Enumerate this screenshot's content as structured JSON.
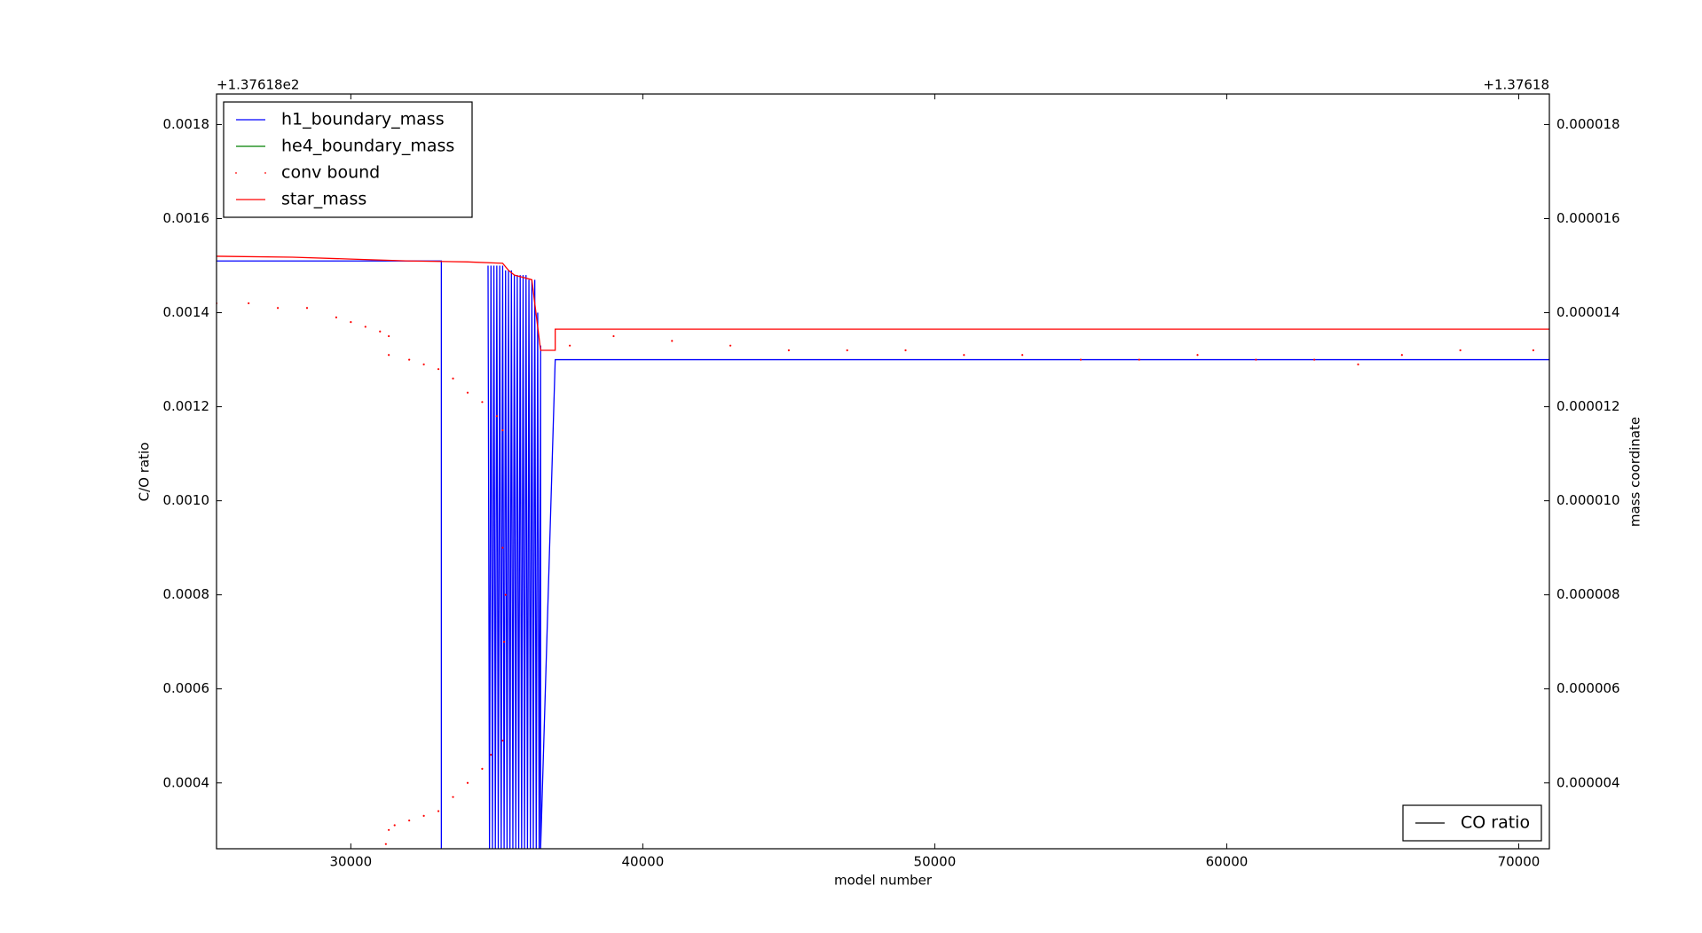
{
  "chart_data": {
    "type": "line",
    "xlabel": "model number",
    "ylabel": "C/O ratio",
    "y2label": "mass coordinate",
    "y_offset_text": "+1.37618e2",
    "y2_offset_text": "+1.37618",
    "xlim": [
      25400,
      71050
    ],
    "xticks": [
      30000,
      40000,
      50000,
      60000,
      70000
    ],
    "ylim": [
      0.00026,
      0.001865
    ],
    "yticks": [
      0.0004,
      0.0006,
      0.0008,
      {
        "value": 0.001,
        "label": "0.0010"
      },
      0.0012,
      0.0014,
      0.0016,
      0.0018
    ],
    "y2lim": [
      2.6e-06,
      1.865e-05
    ],
    "y2ticks": [
      4e-06,
      6e-06,
      8e-06,
      {
        "value": 1e-05,
        "label": "0.000010"
      },
      1.2e-05,
      1.4e-05,
      1.6e-05,
      1.8e-05
    ],
    "grid": false,
    "legend": "upper left",
    "legend2": "lower right",
    "series": [
      {
        "name": "h1_boundary_mass",
        "color": "#0000ff",
        "axis": "y2",
        "style": "line",
        "x": [
          25400,
          33100,
          33100,
          34700,
          34700,
          34750,
          34800,
          34850,
          34900,
          34950,
          35000,
          35050,
          35100,
          35150,
          35200,
          35250,
          35300,
          35350,
          35400,
          35450,
          35500,
          35550,
          35600,
          35650,
          35700,
          35750,
          35800,
          35850,
          35900,
          35950,
          36000,
          36050,
          36100,
          36150,
          36200,
          36250,
          36300,
          36350,
          36400,
          36450,
          36500,
          36500,
          37000,
          71050
        ],
        "values": [
          1.51e-05,
          1.51e-05,
          2.6e-06,
          null,
          1.5e-05,
          2.6e-06,
          1.5e-05,
          2.6e-06,
          1.5e-05,
          2.6e-06,
          1.5e-05,
          2.6e-06,
          1.5e-05,
          2.6e-06,
          1.5e-05,
          2.6e-06,
          1.49e-05,
          2.6e-06,
          1.49e-05,
          2.6e-06,
          1.49e-05,
          2.6e-06,
          1.48e-05,
          2.6e-06,
          1.48e-05,
          2.6e-06,
          1.48e-05,
          2.6e-06,
          1.48e-05,
          2.6e-06,
          1.48e-05,
          2.6e-06,
          1.47e-05,
          2.6e-06,
          1.47e-05,
          2.6e-06,
          1.47e-05,
          2.6e-06,
          1.4e-05,
          2.6e-06,
          1.33e-05,
          2.6e-06,
          1.3e-05,
          1.3e-05
        ]
      },
      {
        "name": "he4_boundary_mass",
        "color": "#008000",
        "axis": "y2",
        "style": "line",
        "x": [],
        "values": []
      },
      {
        "name": "conv bound",
        "color": "#ff0000",
        "axis": "y2",
        "style": "dots",
        "x": [
          25400,
          26500,
          27500,
          28500,
          29500,
          30000,
          30500,
          31000,
          31300,
          31300,
          32000,
          32500,
          33000,
          33500,
          34000,
          34500,
          35000,
          35200,
          35200,
          35300,
          35250,
          35200,
          34800,
          34500,
          34000,
          33500,
          33000,
          32500,
          32000,
          31500,
          31300,
          31200,
          37500,
          39000,
          41000,
          43000,
          45000,
          47000,
          49000,
          51000,
          53000,
          55000,
          57000,
          59000,
          61000,
          63000,
          64500,
          66000,
          68000,
          70500
        ],
        "values": [
          1.42e-05,
          1.42e-05,
          1.41e-05,
          1.41e-05,
          1.39e-05,
          1.38e-05,
          1.37e-05,
          1.36e-05,
          1.35e-05,
          1.31e-05,
          1.3e-05,
          1.29e-05,
          1.28e-05,
          1.26e-05,
          1.23e-05,
          1.21e-05,
          1.18e-05,
          1.15e-05,
          9e-06,
          8e-06,
          7e-06,
          4.9e-06,
          4.6e-06,
          4.3e-06,
          4e-06,
          3.7e-06,
          3.4e-06,
          3.3e-06,
          3.2e-06,
          3.1e-06,
          3e-06,
          2.7e-06,
          1.33e-05,
          1.35e-05,
          1.34e-05,
          1.33e-05,
          1.32e-05,
          1.32e-05,
          1.32e-05,
          1.31e-05,
          1.31e-05,
          1.3e-05,
          1.3e-05,
          1.31e-05,
          1.3e-05,
          1.3e-05,
          1.29e-05,
          1.31e-05,
          1.32e-05,
          1.32e-05
        ]
      },
      {
        "name": "star_mass",
        "color": "#ff0000",
        "axis": "y2",
        "style": "line",
        "x": [
          25400,
          28000,
          30000,
          32000,
          34000,
          35200,
          35400,
          35600,
          36200,
          36500,
          37000,
          37000,
          71050
        ],
        "values": [
          1.52e-05,
          1.518e-05,
          1.514e-05,
          1.51e-05,
          1.508e-05,
          1.505e-05,
          1.49e-05,
          1.48e-05,
          1.47e-05,
          1.32e-05,
          1.32e-05,
          1.365e-05,
          1.365e-05
        ]
      },
      {
        "name": "CO ratio",
        "color": "#000000",
        "axis": "y",
        "style": "line",
        "x": [],
        "values": []
      }
    ]
  }
}
